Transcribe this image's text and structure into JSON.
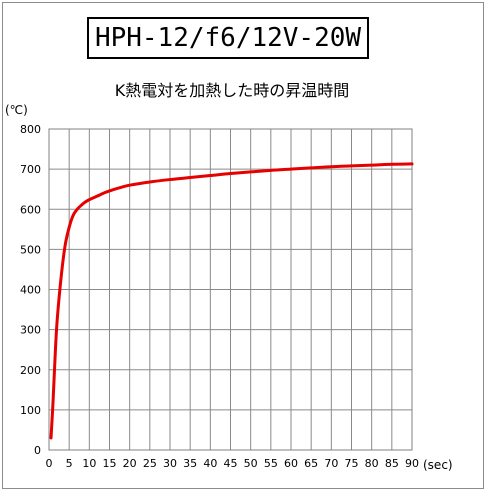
{
  "chart_data": {
    "type": "line",
    "title": "HPH-12/f6/12V-20W",
    "subtitle": "K熱電対を加熱した時の昇温時間",
    "ylabel": "(℃)",
    "xlabel": "(sec)",
    "xlim": [
      0,
      90
    ],
    "ylim": [
      0,
      800
    ],
    "x_ticks": [
      "0",
      "5",
      "10",
      "15",
      "20",
      "25",
      "30",
      "35",
      "40",
      "45",
      "50",
      "55",
      "60",
      "65",
      "70",
      "75",
      "80",
      "85",
      "90"
    ],
    "y_ticks": [
      "0",
      "100",
      "200",
      "300",
      "400",
      "500",
      "600",
      "700",
      "800"
    ],
    "grid": true,
    "series": [
      {
        "color": "#e60000",
        "x": [
          0.5,
          1,
          1.5,
          2,
          3,
          4,
          5,
          6,
          7,
          8,
          9,
          10,
          12,
          14,
          16,
          18,
          20,
          25,
          30,
          35,
          40,
          45,
          50,
          55,
          60,
          65,
          70,
          75,
          80,
          85,
          90
        ],
        "y": [
          30,
          120,
          230,
          320,
          430,
          510,
          555,
          585,
          600,
          610,
          618,
          624,
          633,
          642,
          649,
          655,
          660,
          668,
          674,
          679,
          684,
          689,
          693,
          697,
          700,
          703,
          706,
          708,
          710,
          712,
          713
        ]
      }
    ]
  }
}
